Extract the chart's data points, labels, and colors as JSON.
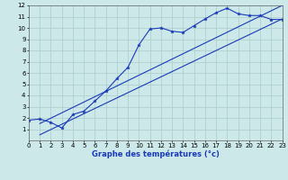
{
  "bg_color": "#cce8e8",
  "grid_color": "#aacccc",
  "line_color": "#1a3ab8",
  "xlabel": "Graphe des températures (°c)",
  "xlim": [
    0,
    23
  ],
  "ylim": [
    0,
    12
  ],
  "xticks": [
    0,
    1,
    2,
    3,
    4,
    5,
    6,
    7,
    8,
    9,
    10,
    11,
    12,
    13,
    14,
    15,
    16,
    17,
    18,
    19,
    20,
    21,
    22,
    23
  ],
  "yticks": [
    1,
    2,
    3,
    4,
    5,
    6,
    7,
    8,
    9,
    10,
    11,
    12
  ],
  "line1_x": [
    0,
    1,
    2,
    3,
    4,
    5,
    6,
    7,
    8,
    9,
    10,
    11,
    12,
    13,
    14,
    15,
    16,
    17,
    18,
    19,
    20,
    21,
    22,
    23
  ],
  "line1_y": [
    1.8,
    1.9,
    1.6,
    1.1,
    2.3,
    2.6,
    3.5,
    4.4,
    5.5,
    6.5,
    8.5,
    9.9,
    10.0,
    9.7,
    9.6,
    10.2,
    10.8,
    11.35,
    11.75,
    11.25,
    11.1,
    11.1,
    10.75,
    10.75
  ],
  "line2_x": [
    1,
    23
  ],
  "line2_y": [
    1.5,
    12.0
  ],
  "line3_x": [
    1,
    23
  ],
  "line3_y": [
    0.5,
    10.8
  ],
  "xlabel_fontsize": 6,
  "tick_fontsize": 5
}
